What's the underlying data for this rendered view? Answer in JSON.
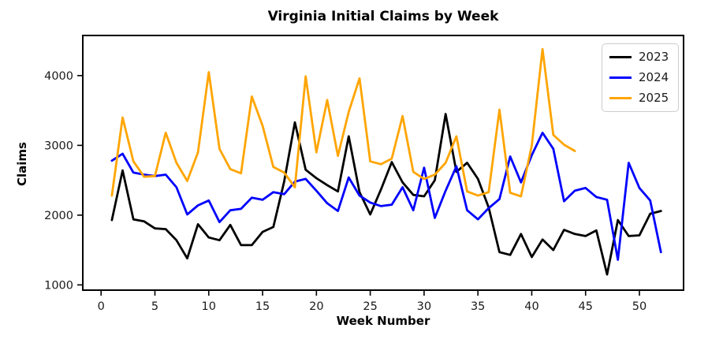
{
  "title": "Virginia Initial Claims by Week",
  "chart_data": {
    "type": "line",
    "title": "Virginia Initial Claims by Week",
    "xlabel": "Week Number",
    "ylabel": "Claims",
    "x_ticks": [
      0,
      5,
      10,
      15,
      20,
      25,
      30,
      35,
      40,
      45,
      50
    ],
    "y_ticks": [
      1000,
      2000,
      3000,
      4000
    ],
    "xlim": [
      -1.7,
      54.1
    ],
    "ylim": [
      925,
      4575
    ],
    "grid": false,
    "legend_position": "upper right",
    "legend_entries": [
      "2023",
      "2024",
      "2025"
    ],
    "series": [
      {
        "name": "2023",
        "color": "#000000",
        "first_week": 1,
        "values": [
          1930,
          2640,
          1940,
          1910,
          1810,
          1800,
          1640,
          1380,
          1870,
          1680,
          1640,
          1860,
          1570,
          1570,
          1760,
          1830,
          2480,
          3330,
          2650,
          2530,
          2430,
          2340,
          3130,
          2330,
          2010,
          2370,
          2760,
          2470,
          2290,
          2270,
          2500,
          3450,
          2620,
          2750,
          2520,
          2110,
          1470,
          1430,
          1730,
          1400,
          1650,
          1500,
          1790,
          1730,
          1700,
          1780,
          1150,
          1930,
          1700,
          1710,
          2020,
          2060
        ]
      },
      {
        "name": "2024",
        "color": "#0000ff",
        "first_week": 1,
        "values": [
          2780,
          2880,
          2610,
          2580,
          2560,
          2580,
          2400,
          2010,
          2140,
          2210,
          1900,
          2070,
          2090,
          2250,
          2220,
          2330,
          2300,
          2480,
          2520,
          2350,
          2170,
          2060,
          2540,
          2280,
          2180,
          2130,
          2150,
          2400,
          2070,
          2680,
          1960,
          2350,
          2700,
          2070,
          1940,
          2100,
          2230,
          2840,
          2470,
          2860,
          3180,
          2950,
          2200,
          2350,
          2390,
          2260,
          2220,
          1360,
          2750,
          2390,
          2210,
          1470
        ]
      },
      {
        "name": "2025",
        "color": "#ffa500",
        "first_week": 1,
        "values": [
          2280,
          3400,
          2770,
          2550,
          2560,
          3180,
          2750,
          2490,
          2900,
          4050,
          2950,
          2660,
          2600,
          3700,
          3280,
          2690,
          2610,
          2400,
          3990,
          2900,
          3650,
          2850,
          3480,
          3960,
          2770,
          2730,
          2810,
          3420,
          2620,
          2520,
          2580,
          2750,
          3130,
          2340,
          2280,
          2330,
          3510,
          2320,
          2270,
          3000,
          4380,
          3150,
          3010,
          2920
        ]
      }
    ]
  }
}
